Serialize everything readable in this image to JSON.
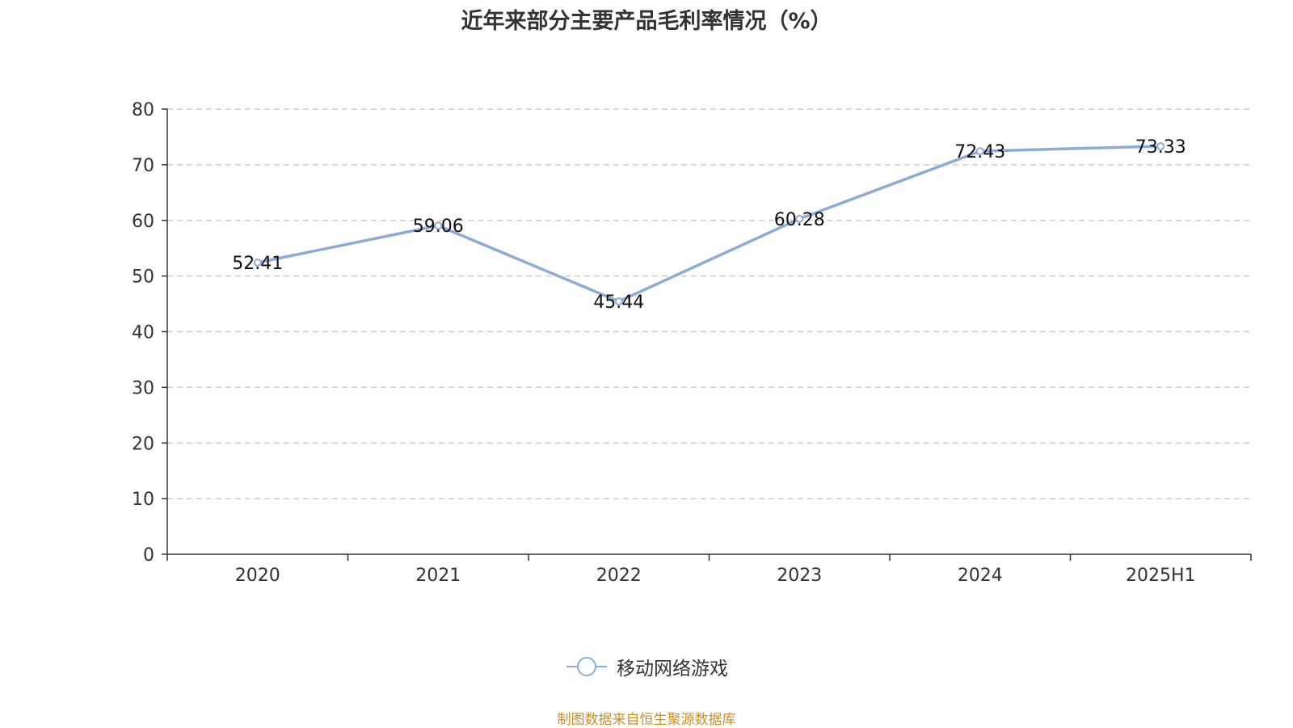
{
  "chart_data": {
    "type": "line",
    "title": "近年来部分主要产品毛利率情况（%）",
    "categories": [
      "2020",
      "2021",
      "2022",
      "2023",
      "2024",
      "2025H1"
    ],
    "series": [
      {
        "name": "移动网络游戏",
        "values": [
          52.41,
          59.06,
          45.44,
          60.28,
          72.43,
          73.33
        ]
      }
    ],
    "ylim": [
      0,
      80
    ],
    "yticks": [
      0,
      10,
      20,
      30,
      40,
      50,
      60,
      70,
      80
    ],
    "grid": true,
    "legend_position": "bottom-center",
    "xlabel": "",
    "ylabel": ""
  },
  "source_note": "制图数据来自恒生聚源数据库",
  "colors": {
    "series": "#8eaad6",
    "source_note": "#c8902a",
    "axis": "#333333",
    "grid": "#cccccc"
  }
}
